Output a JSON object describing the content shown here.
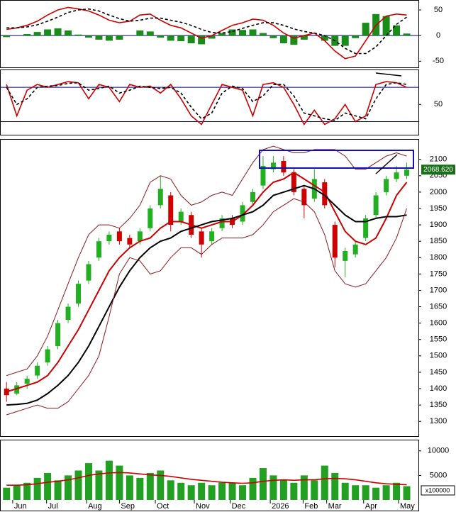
{
  "chart_data": [
    {
      "type": "macd",
      "ylim": [
        -62,
        68
      ],
      "yticks": [
        -50,
        0,
        50
      ],
      "zero_color": "#00008b",
      "histogram": {
        "color": "#1a8c1a",
        "values": [
          -3,
          0,
          3,
          7,
          12,
          14,
          10,
          2,
          -4,
          -8,
          -10,
          -8,
          0,
          10,
          8,
          -4,
          -10,
          -11,
          -15,
          -17,
          -6,
          5,
          12,
          11,
          12,
          5,
          -5,
          -15,
          -18,
          -8,
          0,
          -10,
          -20,
          -20,
          -5,
          25,
          42,
          38,
          20,
          4
        ]
      },
      "series": [
        {
          "color": "#cc0000",
          "values": [
            12,
            15,
            20,
            28,
            40,
            50,
            55,
            52,
            48,
            40,
            30,
            25,
            28,
            40,
            42,
            30,
            20,
            15,
            5,
            -5,
            0,
            10,
            20,
            25,
            32,
            30,
            20,
            5,
            -5,
            0,
            5,
            -10,
            -30,
            -45,
            -40,
            -10,
            20,
            38,
            42,
            40
          ]
        },
        {
          "color": "#000000",
          "dash": true,
          "values": [
            15,
            15,
            17,
            21,
            28,
            36,
            45,
            50,
            52,
            48,
            40,
            33,
            28,
            30,
            34,
            34,
            30,
            26,
            20,
            12,
            6,
            5,
            8,
            14,
            20,
            25,
            25,
            20,
            13,
            8,
            5,
            0,
            -10,
            -25,
            -35,
            -35,
            -22,
            0,
            22,
            36
          ]
        }
      ]
    },
    {
      "type": "stochastic",
      "ylim": [
        -3,
        110
      ],
      "yticks": [
        50
      ],
      "hlines": [
        80,
        20
      ],
      "hline_color": "#00008b",
      "series": [
        {
          "color": "#cc0000",
          "values": [
            85,
            30,
            75,
            85,
            80,
            85,
            90,
            88,
            60,
            85,
            80,
            55,
            85,
            80,
            82,
            70,
            85,
            60,
            30,
            15,
            50,
            85,
            80,
            75,
            30,
            85,
            88,
            80,
            50,
            15,
            40,
            15,
            25,
            50,
            20,
            30,
            85,
            90,
            88,
            80
          ]
        },
        {
          "color": "#000000",
          "dash": true,
          "values": [
            80,
            50,
            60,
            80,
            82,
            83,
            87,
            88,
            75,
            78,
            82,
            70,
            75,
            82,
            80,
            78,
            80,
            70,
            45,
            25,
            35,
            70,
            82,
            78,
            55,
            65,
            85,
            85,
            65,
            35,
            30,
            25,
            22,
            35,
            30,
            25,
            60,
            85,
            88,
            85
          ]
        }
      ]
    },
    {
      "type": "candlestick",
      "xlim": [
        -0.5,
        40
      ],
      "ylim": [
        1255,
        2160
      ],
      "yticks": [
        1300,
        1350,
        1400,
        1450,
        1500,
        1550,
        1600,
        1650,
        1700,
        1750,
        1800,
        1850,
        1900,
        1950,
        2000,
        2050,
        2100
      ],
      "up_color": "#22b022",
      "down_color": "#d00000",
      "open": [
        1400,
        1385,
        1415,
        1440,
        1480,
        1530,
        1610,
        1660,
        1730,
        1800,
        1850,
        1880,
        1860,
        1850,
        1890,
        1960,
        1990,
        1910,
        1930,
        1880,
        1850,
        1890,
        1920,
        1910,
        1970,
        2020,
        2070,
        2095,
        2060,
        2010,
        1980,
        2030,
        1900,
        1790,
        1810,
        1860,
        1930,
        2000,
        2040,
        2050
      ],
      "high": [
        1420,
        1420,
        1440,
        1480,
        1530,
        1610,
        1660,
        1730,
        1790,
        1860,
        1880,
        1890,
        1870,
        1890,
        1960,
        2050,
        2000,
        1950,
        1940,
        1890,
        1890,
        1930,
        1930,
        1970,
        2010,
        2110,
        2110,
        2110,
        2070,
        2020,
        2070,
        2040,
        1910,
        1830,
        1850,
        1930,
        2000,
        2050,
        2080,
        2090
      ],
      "low": [
        1360,
        1380,
        1400,
        1430,
        1470,
        1520,
        1600,
        1650,
        1720,
        1790,
        1840,
        1840,
        1830,
        1840,
        1880,
        1950,
        1880,
        1900,
        1860,
        1800,
        1840,
        1880,
        1890,
        1900,
        1960,
        2010,
        2060,
        2050,
        1990,
        1920,
        1970,
        1950,
        1770,
        1740,
        1800,
        1850,
        1920,
        1990,
        2030,
        2040
      ],
      "close": [
        1380,
        1410,
        1430,
        1470,
        1520,
        1600,
        1650,
        1720,
        1780,
        1850,
        1870,
        1850,
        1840,
        1880,
        1950,
        2010,
        1900,
        1940,
        1870,
        1840,
        1880,
        1920,
        1900,
        1960,
        2000,
        2080,
        2090,
        2060,
        2000,
        1960,
        2040,
        1960,
        1800,
        1820,
        1840,
        1920,
        1990,
        2040,
        2060,
        2068.62
      ],
      "last_label": {
        "value": 2068.62,
        "label": "2068.620"
      },
      "last_label_color": "#1a6e1a",
      "series": [
        {
          "color": "#cc0000",
          "width": 2,
          "values": [
            1390,
            1400,
            1410,
            1420,
            1440,
            1480,
            1530,
            1580,
            1640,
            1700,
            1760,
            1800,
            1830,
            1850,
            1860,
            1890,
            1910,
            1910,
            1900,
            1890,
            1900,
            1910,
            1910,
            1930,
            1960,
            2000,
            2030,
            2040,
            2060,
            2040,
            2020,
            2000,
            1940,
            1880,
            1850,
            1840,
            1860,
            1920,
            1990,
            2030
          ]
        },
        {
          "color": "#000000",
          "width": 2,
          "values": [
            1350,
            1352,
            1355,
            1365,
            1385,
            1410,
            1440,
            1480,
            1530,
            1590,
            1650,
            1710,
            1760,
            1800,
            1830,
            1850,
            1860,
            1880,
            1890,
            1900,
            1910,
            1915,
            1920,
            1930,
            1940,
            1960,
            1990,
            2000,
            2010,
            2020,
            2010,
            1990,
            1960,
            1930,
            1910,
            1910,
            1920,
            1925,
            1925,
            1930
          ]
        },
        {
          "color": "#8b1a1a",
          "width": 1,
          "values": [
            1440,
            1450,
            1460,
            1500,
            1560,
            1640,
            1720,
            1800,
            1870,
            1900,
            1900,
            1890,
            1920,
            1960,
            2030,
            2050,
            2040,
            1990,
            1960,
            1970,
            1990,
            2000,
            1990,
            2040,
            2090,
            2130,
            2140,
            2130,
            2120,
            2120,
            2130,
            2130,
            2130,
            2110,
            2070,
            2070,
            2090,
            2110,
            2120,
            2110
          ]
        },
        {
          "color": "#8b1a1a",
          "width": 1,
          "values": [
            1320,
            1330,
            1340,
            1350,
            1340,
            1340,
            1360,
            1400,
            1440,
            1500,
            1620,
            1750,
            1800,
            1790,
            1750,
            1760,
            1800,
            1830,
            1830,
            1810,
            1840,
            1860,
            1860,
            1860,
            1870,
            1900,
            1940,
            1960,
            1980,
            1970,
            1940,
            1870,
            1760,
            1720,
            1710,
            1720,
            1760,
            1800,
            1860,
            1950
          ]
        }
      ]
    },
    {
      "type": "volume",
      "ylim": [
        0,
        12140
      ],
      "yticks": [
        5000,
        10000
      ],
      "color": "#22a022",
      "unit_label": "x100000",
      "values": [
        2500,
        3000,
        3500,
        4500,
        5500,
        4000,
        5000,
        6000,
        7500,
        6000,
        8000,
        7000,
        5000,
        4500,
        5500,
        6000,
        4000,
        3500,
        3000,
        3500,
        3000,
        3500,
        3500,
        3000,
        4500,
        6500,
        5000,
        4000,
        3500,
        5000,
        4000,
        7000,
        5500,
        3500,
        3000,
        3000,
        2500,
        3000,
        3500,
        2800
      ],
      "series": [
        {
          "color": "#cc0000",
          "values": [
            3000,
            3000,
            3100,
            3300,
            3600,
            3800,
            4100,
            4500,
            5000,
            5300,
            5500,
            5600,
            5500,
            5300,
            5100,
            5000,
            4800,
            4500,
            4200,
            4000,
            3800,
            3600,
            3500,
            3400,
            3500,
            3800,
            4000,
            4100,
            4000,
            4100,
            4100,
            4300,
            4400,
            4300,
            4100,
            3800,
            3500,
            3300,
            3200,
            3100
          ]
        }
      ],
      "xticks": [
        {
          "value": 0.6,
          "label": "Jun"
        },
        {
          "value": 3.9,
          "label": "Jul"
        },
        {
          "value": 7.8,
          "label": "Aug"
        },
        {
          "value": 11,
          "label": "Sep"
        },
        {
          "value": 14.5,
          "label": "Oct"
        },
        {
          "value": 18.3,
          "label": "Nov"
        },
        {
          "value": 21.8,
          "label": "Dec"
        },
        {
          "value": 25.7,
          "label": "2026"
        },
        {
          "value": 28.9,
          "label": "Feb"
        },
        {
          "value": 31.2,
          "label": "Mar"
        },
        {
          "value": 34.8,
          "label": "Apr"
        },
        {
          "value": 38.2,
          "label": "May"
        }
      ]
    }
  ]
}
